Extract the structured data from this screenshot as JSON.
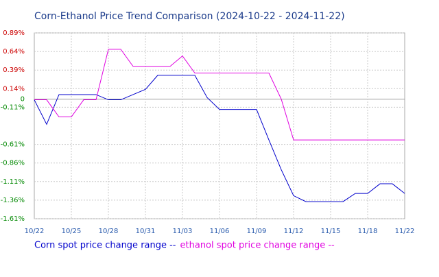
{
  "chart_data": {
    "type": "line",
    "title": "Corn-Ethanol Price Trend Comparison (2024-10-22 - 2024-11-22)",
    "categories": [
      "10/22",
      null,
      null,
      "10/25",
      null,
      null,
      "10/28",
      null,
      null,
      "10/31",
      null,
      null,
      "11/03",
      null,
      null,
      "11/06",
      null,
      null,
      "11/09",
      null,
      null,
      "11/12",
      null,
      null,
      "11/15",
      null,
      null,
      "11/18",
      null,
      null,
      "11/22"
    ],
    "series": [
      {
        "name": "Corn spot price change range --",
        "color": "#0000cc",
        "values": [
          -0.01,
          -0.34,
          0.06,
          0.06,
          0.06,
          0.06,
          -0.01,
          -0.01,
          0.06,
          0.13,
          0.32,
          0.32,
          0.32,
          0.32,
          0.02,
          -0.14,
          -0.14,
          -0.14,
          -0.14,
          -0.55,
          -0.95,
          -1.3,
          -1.38,
          -1.38,
          -1.38,
          -1.38,
          -1.27,
          -1.27,
          -1.14,
          -1.14,
          -1.27
        ]
      },
      {
        "name": "ethanol spot price change range --",
        "color": "#e000e0",
        "values": [
          -0.01,
          -0.01,
          -0.24,
          -0.24,
          -0.01,
          -0.01,
          0.67,
          0.67,
          0.44,
          0.44,
          0.44,
          0.44,
          0.58,
          0.35,
          0.35,
          0.35,
          0.35,
          0.35,
          0.35,
          0.35,
          0.0,
          -0.55,
          -0.55,
          -0.55,
          -0.55,
          -0.55,
          -0.55,
          -0.55,
          -0.55,
          -0.55,
          -0.55
        ]
      }
    ],
    "ylim": [
      -1.61,
      0.89
    ],
    "yticks": [
      {
        "value": 0.89,
        "label": "0.89%"
      },
      {
        "value": 0.64,
        "label": "0.64%"
      },
      {
        "value": 0.39,
        "label": "0.39%"
      },
      {
        "value": 0.14,
        "label": "0.14%"
      },
      {
        "value": -0.11,
        "label": "-0.11%"
      },
      0,
      {
        "value": -0.61,
        "label": "-0.61%"
      },
      {
        "value": -0.86,
        "label": "-0.86%"
      },
      {
        "value": -1.11,
        "label": "-1.11%"
      },
      {
        "value": -1.36,
        "label": "-1.36%"
      },
      {
        "value": -1.61,
        "label": "-1.61%"
      }
    ],
    "grid": true
  }
}
